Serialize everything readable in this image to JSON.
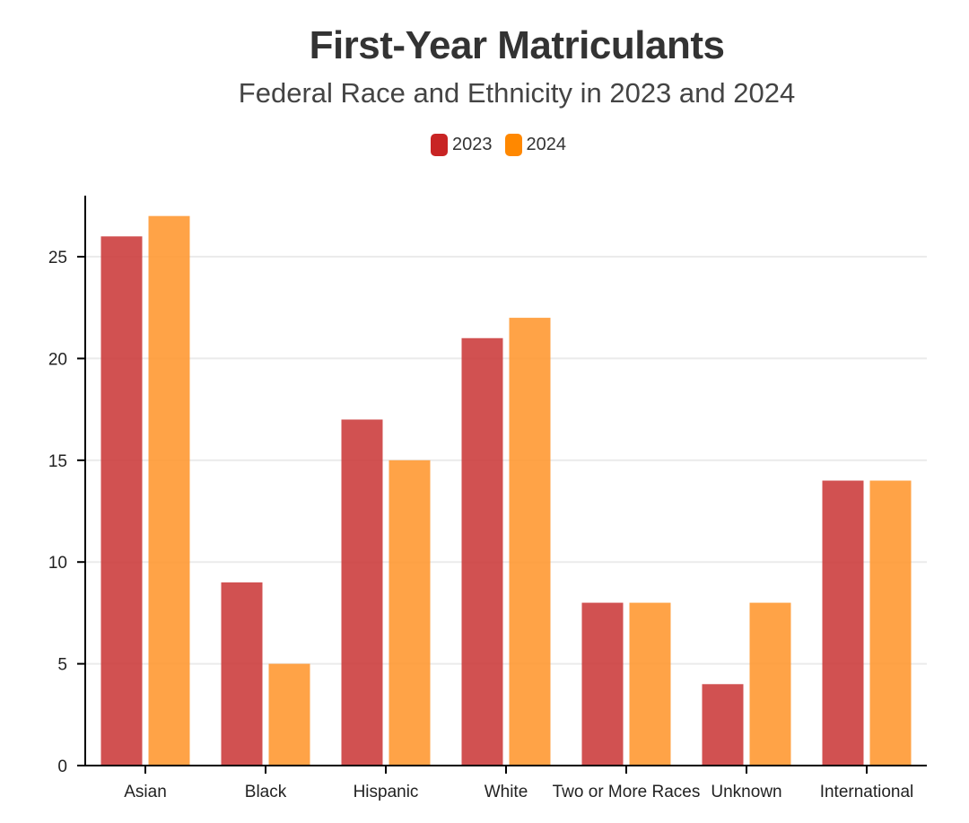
{
  "colors": {
    "series_2023": "#cc3e3e",
    "series_2024": "#ff9933",
    "legend_2023": "#c82424",
    "legend_2024": "#ff8800",
    "grid": "#ebebeb",
    "axis": "#000000"
  },
  "chart_data": {
    "type": "bar",
    "title": "First-Year Matriculants",
    "subtitle": "Federal Race and Ethnicity in 2023 and 2024",
    "xlabel": "",
    "ylabel": "",
    "categories": [
      "Asian",
      "Black",
      "Hispanic",
      "White",
      "Two or More Races",
      "Unknown",
      "International"
    ],
    "series": [
      {
        "name": "2023",
        "values": [
          26,
          9,
          17,
          21,
          8,
          4,
          14
        ]
      },
      {
        "name": "2024",
        "values": [
          27,
          5,
          15,
          22,
          8,
          8,
          14
        ]
      }
    ],
    "ylim": [
      0,
      28
    ],
    "yticks": [
      0,
      5,
      10,
      15,
      20,
      25
    ],
    "grid": true,
    "legend": "top-center"
  }
}
